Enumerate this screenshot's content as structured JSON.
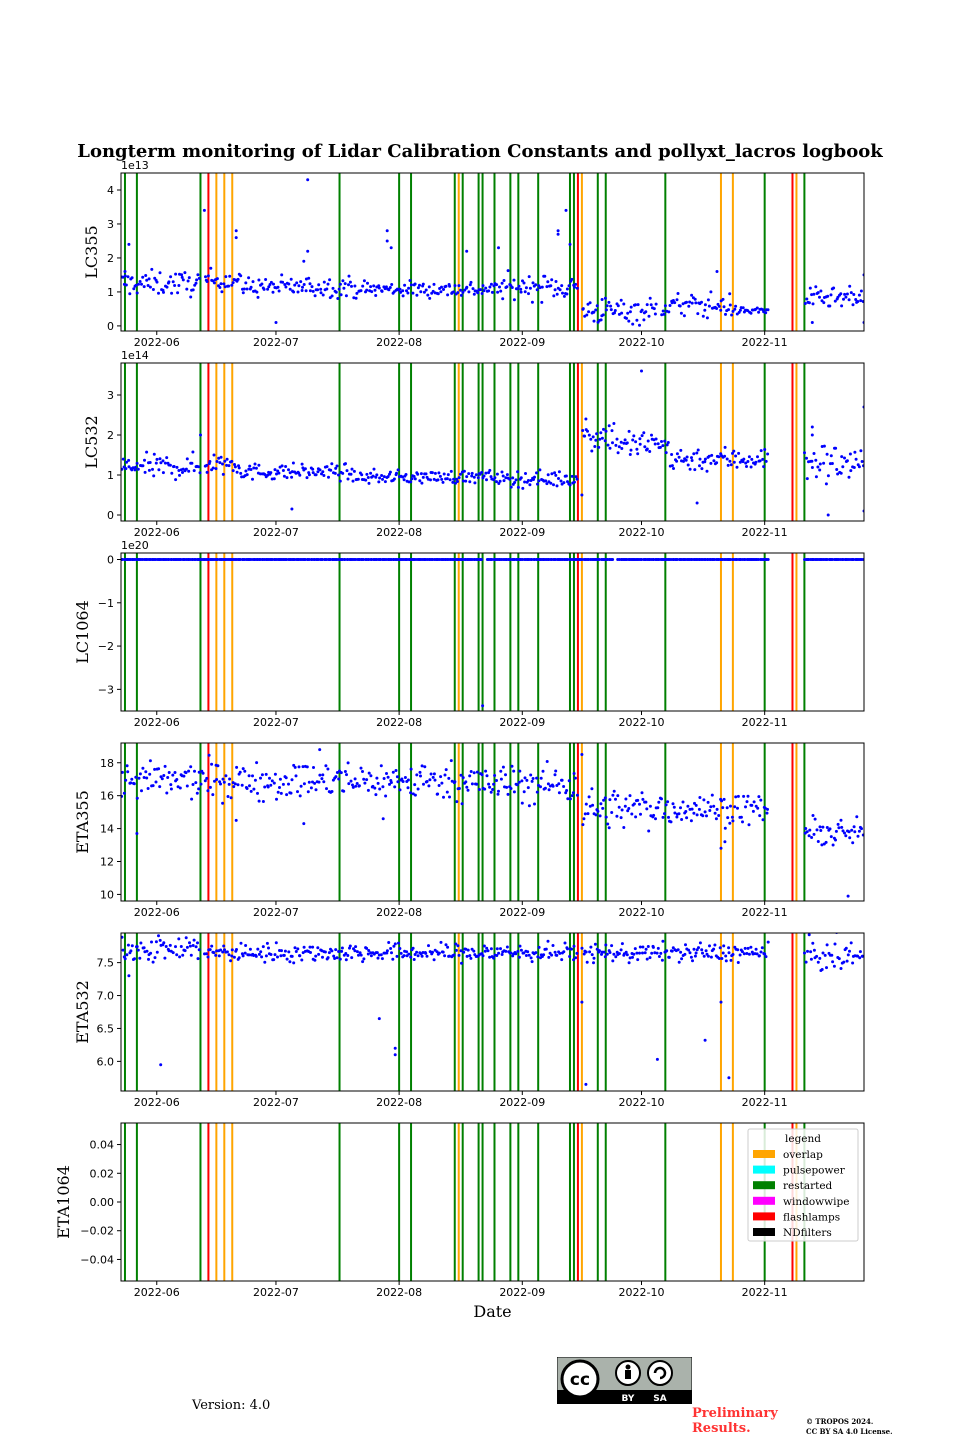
{
  "title": "Longterm monitoring of Lidar Calibration Constants and pollyxt_lacros logbook",
  "version_text": "Version: 4.0",
  "preliminary_text": "Preliminary Results.",
  "copyright_lines": [
    "© TROPOS 2024.",
    "CC BY SA 4.0 License."
  ],
  "license_badge": {
    "left": "BY",
    "right": "SA"
  },
  "chart_data": {
    "type": "scatter",
    "shared_x": {
      "label": "Date",
      "start_date": "2022-05-23",
      "end_date": "2022-11-26",
      "tick_labels": [
        "2022-06",
        "2022-07",
        "2022-08",
        "2022-09",
        "2022-10",
        "2022-11"
      ],
      "tick_dates": [
        "2022-06-01",
        "2022-07-01",
        "2022-08-01",
        "2022-09-01",
        "2022-10-01",
        "2022-11-01"
      ]
    },
    "colors": {
      "points": "#0000ff",
      "overlap": "#ffa500",
      "pulsepower": "#00ffff",
      "restarted": "#008000",
      "windowwipe": "#ff00ff",
      "flashlamps": "#ff0000",
      "NDfilters": "#000000"
    },
    "logbook_events": {
      "restarted": [
        "2022-05-24",
        "2022-05-27",
        "2022-06-12",
        "2022-07-17",
        "2022-08-01",
        "2022-08-04",
        "2022-08-15",
        "2022-08-17",
        "2022-08-21",
        "2022-08-22",
        "2022-08-25",
        "2022-08-29",
        "2022-08-31",
        "2022-09-05",
        "2022-09-13",
        "2022-09-14",
        "2022-09-20",
        "2022-09-22",
        "2022-10-07",
        "2022-11-01",
        "2022-11-11"
      ],
      "overlap": [
        "2022-06-16",
        "2022-06-18",
        "2022-06-20",
        "2022-08-16",
        "2022-09-16",
        "2022-10-21",
        "2022-10-24",
        "2022-11-09"
      ],
      "flashlamps": [
        "2022-06-14",
        "2022-09-15",
        "2022-11-08"
      ],
      "pulsepower": [],
      "windowwipe": [],
      "NDfilters": []
    },
    "legend": {
      "title": "legend",
      "position": "upper-right of ETA1064 panel",
      "entries": [
        "overlap",
        "pulsepower",
        "restarted",
        "windowwipe",
        "flashlamps",
        "NDfilters"
      ]
    },
    "panels": [
      {
        "ylabel": "LC355",
        "ylim": [
          -0.15,
          4.5
        ],
        "yticks": [
          0,
          1,
          2,
          3,
          4
        ],
        "ytick_labels": [
          "0",
          "1",
          "2",
          "3",
          "4"
        ],
        "offset_label": "1e13",
        "series": [
          {
            "start": "2022-05-23",
            "end": "2022-06-12",
            "level": 1.25,
            "noise": 0.18
          },
          {
            "start": "2022-06-13",
            "end": "2022-06-22",
            "level": 1.35,
            "noise": 0.15
          },
          {
            "start": "2022-06-22",
            "end": "2022-07-20",
            "level": 1.15,
            "noise": 0.15
          },
          {
            "start": "2022-07-20",
            "end": "2022-08-26",
            "level": 1.08,
            "noise": 0.12
          },
          {
            "start": "2022-08-26",
            "end": "2022-09-15",
            "level": 1.15,
            "noise": 0.18
          },
          {
            "start": "2022-09-16",
            "end": "2022-10-05",
            "level": 0.45,
            "noise": 0.2
          },
          {
            "start": "2022-10-06",
            "end": "2022-10-24",
            "level": 0.6,
            "noise": 0.18
          },
          {
            "start": "2022-10-24",
            "end": "2022-11-02",
            "level": 0.45,
            "noise": 0.06
          },
          {
            "start": "2022-11-11",
            "end": "2022-11-26",
            "level": 0.8,
            "noise": 0.15
          }
        ],
        "outliers": [
          [
            "2022-06-13",
            3.4
          ],
          [
            "2022-07-09",
            4.3
          ],
          [
            "2022-07-09",
            2.2
          ],
          [
            "2022-07-08",
            1.9
          ],
          [
            "2022-06-21",
            2.8
          ],
          [
            "2022-06-21",
            2.6
          ],
          [
            "2022-05-25",
            2.4
          ],
          [
            "2022-05-24",
            1.6
          ],
          [
            "2022-07-29",
            2.8
          ],
          [
            "2022-07-29",
            2.5
          ],
          [
            "2022-07-30",
            2.3
          ],
          [
            "2022-08-18",
            2.2
          ],
          [
            "2022-08-26",
            2.3
          ],
          [
            "2022-09-10",
            2.8
          ],
          [
            "2022-09-10",
            2.7
          ],
          [
            "2022-09-12",
            3.4
          ],
          [
            "2022-09-13",
            2.4
          ],
          [
            "2022-09-19",
            0.4
          ],
          [
            "2022-10-20",
            1.6
          ],
          [
            "2022-11-26",
            1.5
          ],
          [
            "2022-07-01",
            0.1
          ],
          [
            "2022-11-13",
            0.1
          ],
          [
            "2022-11-26",
            0.1
          ],
          [
            "2022-09-21",
            0.3
          ]
        ]
      },
      {
        "ylabel": "LC532",
        "ylim": [
          -0.15,
          3.8
        ],
        "yticks": [
          0,
          1,
          2,
          3
        ],
        "ytick_labels": [
          "0",
          "1",
          "2",
          "3"
        ],
        "offset_label": "1e14",
        "series": [
          {
            "start": "2022-05-23",
            "end": "2022-06-12",
            "level": 1.2,
            "noise": 0.15
          },
          {
            "start": "2022-06-13",
            "end": "2022-06-22",
            "level": 1.3,
            "noise": 0.15
          },
          {
            "start": "2022-06-22",
            "end": "2022-07-20",
            "level": 1.08,
            "noise": 0.1
          },
          {
            "start": "2022-07-20",
            "end": "2022-08-26",
            "level": 0.95,
            "noise": 0.08
          },
          {
            "start": "2022-08-26",
            "end": "2022-09-15",
            "level": 0.9,
            "noise": 0.1
          },
          {
            "start": "2022-09-16",
            "end": "2022-09-25",
            "level": 2.0,
            "noise": 0.2
          },
          {
            "start": "2022-09-25",
            "end": "2022-10-08",
            "level": 1.75,
            "noise": 0.2
          },
          {
            "start": "2022-10-08",
            "end": "2022-11-02",
            "level": 1.4,
            "noise": 0.15
          },
          {
            "start": "2022-11-11",
            "end": "2022-11-26",
            "level": 1.3,
            "noise": 0.25
          }
        ],
        "outliers": [
          [
            "2022-10-01",
            3.6
          ],
          [
            "2022-11-26",
            2.7
          ],
          [
            "2022-11-13",
            2.2
          ],
          [
            "2022-11-13",
            2.0
          ],
          [
            "2022-06-12",
            2.0
          ],
          [
            "2022-07-05",
            0.15
          ],
          [
            "2022-09-16",
            0.5
          ],
          [
            "2022-10-15",
            0.3
          ],
          [
            "2022-11-17",
            0.0
          ],
          [
            "2022-11-26",
            0.1
          ],
          [
            "2022-09-17",
            2.4
          ]
        ]
      },
      {
        "ylabel": "LC1064",
        "ylim": [
          -3.5,
          0.15
        ],
        "yticks": [
          0,
          -1,
          -2,
          -3
        ],
        "ytick_labels": [
          "0",
          "−1",
          "−2",
          "−3"
        ],
        "offset_label": "1e20",
        "series": [
          {
            "start": "2022-05-23",
            "end": "2022-08-22",
            "level": 0.0,
            "noise": 0.0
          },
          {
            "start": "2022-08-23",
            "end": "2022-09-24",
            "level": 0.0,
            "noise": 0.0
          },
          {
            "start": "2022-09-25",
            "end": "2022-11-02",
            "level": 0.0,
            "noise": 0.0
          },
          {
            "start": "2022-11-11",
            "end": "2022-11-26",
            "level": 0.0,
            "noise": 0.0
          }
        ],
        "outliers": [
          [
            "2022-08-22",
            -3.38
          ]
        ]
      },
      {
        "ylabel": "ETA355",
        "ylim": [
          9.6,
          19.2
        ],
        "yticks": [
          10,
          12,
          14,
          16,
          18
        ],
        "ytick_labels": [
          "10",
          "12",
          "14",
          "16",
          "18"
        ],
        "offset_label": "",
        "series": [
          {
            "start": "2022-05-23",
            "end": "2022-08-20",
            "level": 16.9,
            "noise": 0.55
          },
          {
            "start": "2022-08-20",
            "end": "2022-09-15",
            "level": 16.7,
            "noise": 0.6
          },
          {
            "start": "2022-09-16",
            "end": "2022-10-08",
            "level": 15.2,
            "noise": 0.6
          },
          {
            "start": "2022-10-08",
            "end": "2022-11-02",
            "level": 15.2,
            "noise": 0.45
          },
          {
            "start": "2022-11-11",
            "end": "2022-11-26",
            "level": 13.7,
            "noise": 0.4
          }
        ],
        "outliers": [
          [
            "2022-07-08",
            14.3
          ],
          [
            "2022-07-12",
            18.8
          ],
          [
            "2022-05-27",
            13.7
          ],
          [
            "2022-06-21",
            14.5
          ],
          [
            "2022-07-28",
            14.6
          ],
          [
            "2022-10-21",
            12.8
          ],
          [
            "2022-10-22",
            13.2
          ],
          [
            "2022-11-22",
            9.9
          ],
          [
            "2022-09-16",
            18.5
          ]
        ]
      },
      {
        "ylabel": "ETA532",
        "ylim": [
          5.55,
          7.95
        ],
        "yticks": [
          6.0,
          6.5,
          7.0,
          7.5
        ],
        "ytick_labels": [
          "6.0",
          "6.5",
          "7.0",
          "7.5"
        ],
        "offset_label": "",
        "series": [
          {
            "start": "2022-05-23",
            "end": "2022-06-12",
            "level": 7.72,
            "noise": 0.1
          },
          {
            "start": "2022-06-13",
            "end": "2022-09-15",
            "level": 7.65,
            "noise": 0.07
          },
          {
            "start": "2022-09-16",
            "end": "2022-11-02",
            "level": 7.65,
            "noise": 0.07
          },
          {
            "start": "2022-11-11",
            "end": "2022-11-26",
            "level": 7.6,
            "noise": 0.12
          }
        ],
        "outliers": [
          [
            "2022-06-02",
            5.95
          ],
          [
            "2022-07-27",
            6.65
          ],
          [
            "2022-07-31",
            6.2
          ],
          [
            "2022-07-31",
            6.1
          ],
          [
            "2022-09-17",
            5.65
          ],
          [
            "2022-10-05",
            6.03
          ],
          [
            "2022-10-17",
            6.32
          ],
          [
            "2022-10-21",
            6.9
          ],
          [
            "2022-10-23",
            5.75
          ],
          [
            "2022-09-16",
            6.9
          ],
          [
            "2022-05-25",
            7.3
          ]
        ]
      },
      {
        "ylabel": "ETA1064",
        "ylim": [
          -0.055,
          0.055
        ],
        "yticks": [
          -0.04,
          -0.02,
          0.0,
          0.02,
          0.04
        ],
        "ytick_labels": [
          "−0.04",
          "−0.02",
          "0.00",
          "0.02",
          "0.04"
        ],
        "offset_label": "",
        "series": [],
        "outliers": []
      }
    ]
  }
}
